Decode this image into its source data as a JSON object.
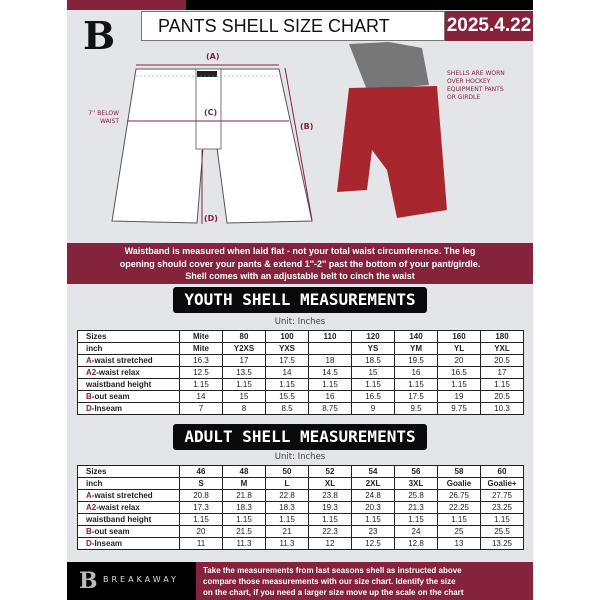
{
  "header": {
    "logo": "B",
    "title": "PANTS SHELL SIZE CHART",
    "date": "2025.4.22"
  },
  "diagram": {
    "label_a": "(A)",
    "label_b": "(B)",
    "label_c": "(C)",
    "label_d": "(D)",
    "below_waist": "7'' BELOW WAIST",
    "worn_note": "SHELLS ARE WORN OVER HOCKEY EQUIPMENT PANTS OR GIRDLE"
  },
  "colors": {
    "accent": "#85223c",
    "shell": "#a8262e"
  },
  "banner": {
    "lines": [
      "Waistband is measured when laid flat - not your total waist circumference. The leg",
      "opening should cover your pants & extend 1''-2'' past the bottom of your pant/girdle.",
      "Shell comes with an adjustable belt to cinch the waist"
    ]
  },
  "youth": {
    "title": "YOUTH SHELL MEASUREMENTS",
    "unit": "Unit: Inches",
    "rows": [
      {
        "k": "",
        "label": "Sizes",
        "values": [
          "Mite",
          "80",
          "100",
          "110",
          "120",
          "140",
          "160",
          "180"
        ]
      },
      {
        "k": "",
        "label": "inch",
        "values": [
          "Mite",
          "Y2XS",
          "YXS",
          "",
          "YS",
          "YM",
          "YL",
          "YXL"
        ]
      },
      {
        "k": "A",
        "label": "-waist stretched",
        "values": [
          "16.3",
          "17",
          "17.5",
          "18",
          "18.5",
          "19.5",
          "20",
          "20.5"
        ]
      },
      {
        "k": "A2",
        "label": "-waist relax",
        "values": [
          "12.5",
          "13.5",
          "14",
          "14.5",
          "15",
          "16",
          "16.5",
          "17"
        ]
      },
      {
        "k": "",
        "label": "waistband height",
        "values": [
          "1.15",
          "1.15",
          "1.15",
          "1.15",
          "1.15",
          "1.15",
          "1.15",
          "1.15"
        ]
      },
      {
        "k": "B",
        "label": "-out seam",
        "values": [
          "14",
          "15",
          "15.5",
          "16",
          "16.5",
          "17.5",
          "19",
          "20.5"
        ]
      },
      {
        "k": "D",
        "label": "-Inseam",
        "values": [
          "7",
          "8",
          "8.5",
          "8.75",
          "9",
          "9.5",
          "9.75",
          "10.3"
        ]
      }
    ]
  },
  "adult": {
    "title": "ADULT SHELL MEASUREMENTS",
    "unit": "Unit: Inches",
    "rows": [
      {
        "k": "",
        "label": "Sizes",
        "values": [
          "46",
          "48",
          "50",
          "52",
          "54",
          "56",
          "58",
          "60"
        ]
      },
      {
        "k": "",
        "label": "inch",
        "values": [
          "S",
          "M",
          "L",
          "XL",
          "2XL",
          "3XL",
          "Goalie",
          "Goalie+"
        ]
      },
      {
        "k": "A",
        "label": "-waist stretched",
        "values": [
          "20.8",
          "21.8",
          "22.8",
          "23.8",
          "24.8",
          "25.8",
          "26.75",
          "27.75"
        ]
      },
      {
        "k": "A2",
        "label": "-waist relax",
        "values": [
          "17.3",
          "18.3",
          "18.3",
          "19.3",
          "20.3",
          "21.3",
          "22.25",
          "23.25"
        ]
      },
      {
        "k": "",
        "label": "waistband height",
        "values": [
          "1.15",
          "1.15",
          "1.15",
          "1.15",
          "1.15",
          "1.15",
          "1.15",
          "1.15"
        ]
      },
      {
        "k": "B",
        "label": "-out seam",
        "values": [
          "20",
          "21.5",
          "21",
          "22.3",
          "23",
          "24",
          "25",
          "25.5"
        ]
      },
      {
        "k": "D",
        "label": "-Inseam",
        "values": [
          "11",
          "11.3",
          "11.3",
          "12",
          "12.5",
          "12.8",
          "13",
          "13.25"
        ]
      }
    ]
  },
  "footer": {
    "brand": "BREAKAWAY",
    "instructions": [
      "Take the measurements from last seasons shell as instructed above",
      "compare those measurements  with our size chart. Identify the size",
      "on the chart, if you need a larger size move up the scale on the chart"
    ]
  }
}
